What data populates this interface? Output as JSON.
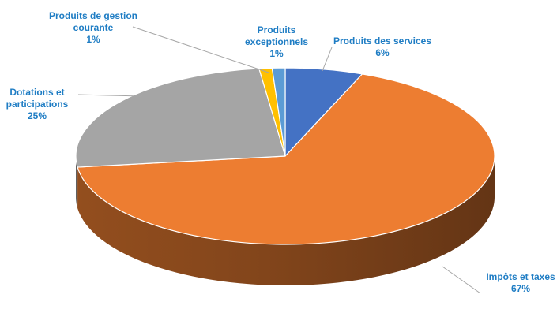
{
  "chart_data": {
    "type": "pie",
    "style": "3d",
    "legend": "none",
    "slices": [
      {
        "name": "Produits des services",
        "value": 6,
        "label_lines": [
          "Produits des services",
          "6%"
        ],
        "color": "#4472C4"
      },
      {
        "name": "Impôts et taxes",
        "value": 67,
        "label_lines": [
          "Impôts et taxes",
          "67%"
        ],
        "color": "#ED7D31"
      },
      {
        "name": "Dotations et participations",
        "value": 25,
        "label_lines": [
          "Dotations et",
          "participations",
          "25%"
        ],
        "color": "#A5A5A5"
      },
      {
        "name": "Produits de gestion courante",
        "value": 1,
        "label_lines": [
          "Produits de gestion",
          "courante",
          "1%"
        ],
        "color": "#FFC000"
      },
      {
        "name": "Produits exceptionnels",
        "value": 1,
        "label_lines": [
          "Produits",
          "exceptionnels",
          "1%"
        ],
        "color": "#5B9BD5"
      }
    ],
    "label_color": "#1F7DC4"
  }
}
